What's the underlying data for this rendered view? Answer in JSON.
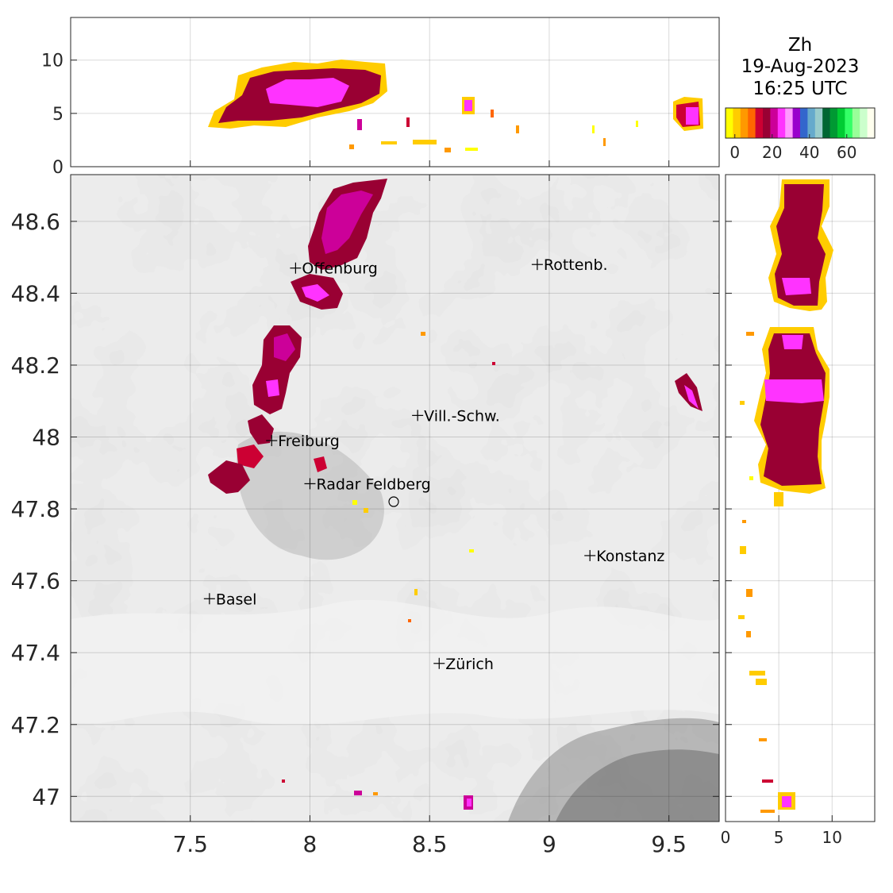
{
  "title": {
    "variable": "Zh",
    "date": "19-Aug-2023",
    "time": "16:25 UTC"
  },
  "colorbar": {
    "colors": [
      "#ffff00",
      "#ffcc00",
      "#ff9900",
      "#ff6600",
      "#cc0033",
      "#990033",
      "#cc0099",
      "#ff33ff",
      "#ff99ff",
      "#9900cc",
      "#3366cc",
      "#66aacc",
      "#99cccc",
      "#006633",
      "#009933",
      "#00cc33",
      "#33ff66",
      "#99ff99",
      "#ccffcc",
      "#ffffee"
    ],
    "ticks": [
      "0",
      "20",
      "40",
      "60"
    ],
    "tick_values": [
      0,
      20,
      40,
      60
    ],
    "range": [
      -5,
      75
    ]
  },
  "main_map": {
    "x_ticks": [
      "7.5",
      "8",
      "8.5",
      "9",
      "9.5"
    ],
    "x_tick_values": [
      7.5,
      8,
      8.5,
      9,
      9.5
    ],
    "y_ticks": [
      "48.6",
      "48.4",
      "48.2",
      "48",
      "47.8",
      "47.6",
      "47.4",
      "47.2",
      "47"
    ],
    "y_tick_values": [
      48.6,
      48.4,
      48.2,
      48.0,
      47.8,
      47.6,
      47.4,
      47.2,
      47.0
    ],
    "xlim": [
      7.0,
      9.71
    ],
    "ylim": [
      46.93,
      48.73
    ],
    "cities": [
      {
        "name": "Offenburg",
        "lon": 7.94,
        "lat": 48.47
      },
      {
        "name": "Rottenb.",
        "lon": 8.95,
        "lat": 48.48
      },
      {
        "name": "Vill.-Schw.",
        "lon": 8.45,
        "lat": 48.06
      },
      {
        "name": "Freiburg",
        "lon": 7.84,
        "lat": 47.99
      },
      {
        "name": "Radar Feldberg",
        "lon": 8.0,
        "lat": 47.87
      },
      {
        "name": "Konstanz",
        "lon": 9.17,
        "lat": 47.67
      },
      {
        "name": "Basel",
        "lon": 7.58,
        "lat": 47.55
      },
      {
        "name": "Zürich",
        "lon": 8.54,
        "lat": 47.37
      }
    ],
    "radar_site": {
      "lon": 8.35,
      "lat": 47.82
    }
  },
  "top_panel": {
    "y_ticks": [
      "0",
      "5",
      "10"
    ],
    "y_tick_values": [
      0,
      5,
      10
    ],
    "ylim": [
      0,
      14
    ]
  },
  "right_panel": {
    "x_ticks": [
      "0",
      "5",
      "10"
    ],
    "x_tick_values": [
      0,
      5,
      10
    ],
    "xlim": [
      0,
      14
    ]
  }
}
